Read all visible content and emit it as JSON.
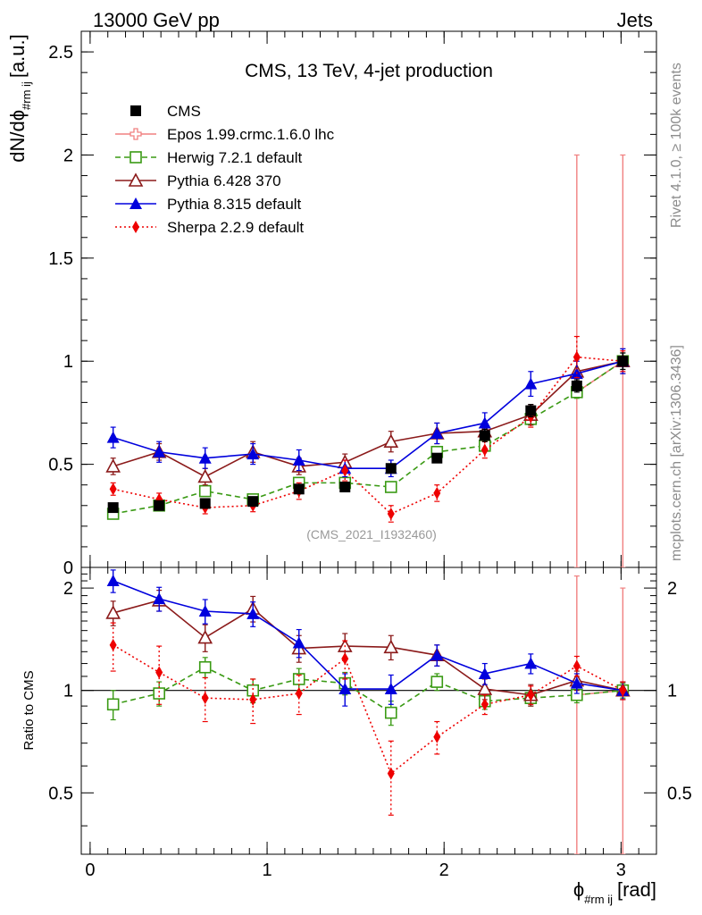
{
  "header": {
    "left": "13000 GeV pp",
    "right": "Jets"
  },
  "side_text": {
    "rivet": "Rivet 4.1.0, ≥ 100k events",
    "mcplots": "mcplots.cern.ch [arXiv:1306.3436]"
  },
  "chart_data": {
    "type": "line",
    "title": "CMS, 13 TeV, 4-jet production",
    "analysis_label": "(CMS_2021_I1932460)",
    "xlabel": "ϕ_{#rm ij} [rad]",
    "xlabel_main": "ϕ",
    "xlabel_sub": "#rm ij",
    "xlabel_unit": "[rad]",
    "ylabel_main": "dN/dϕ",
    "ylabel_sub": "#rm ij",
    "ylabel_unit": "[a.u.]",
    "ratio_ylabel": "Ratio to CMS",
    "xlim": [
      -0.05,
      3.2
    ],
    "ylim": [
      0,
      2.6
    ],
    "ratio_ylim": [
      0.33,
      2.3
    ],
    "x_ticks": [
      "0",
      "1",
      "2",
      "3"
    ],
    "y_ticks": [
      "0",
      "0.5",
      "1",
      "1.5",
      "2",
      "2.5"
    ],
    "ratio_ticks": [
      "0.5",
      "1",
      "2"
    ],
    "x": [
      0.13,
      0.39,
      0.65,
      0.92,
      1.18,
      1.44,
      1.7,
      1.96,
      2.23,
      2.49,
      2.75,
      3.01
    ],
    "series": [
      {
        "name": "CMS",
        "color": "#000000",
        "marker": "filled-square",
        "line": "none",
        "values": [
          0.29,
          0.3,
          0.31,
          0.32,
          0.38,
          0.39,
          0.48,
          0.53,
          0.64,
          0.76,
          0.88,
          1.0
        ],
        "errors": [
          0.02,
          0.02,
          0.02,
          0.02,
          0.02,
          0.02,
          0.02,
          0.02,
          0.03,
          0.03,
          0.03,
          0.04
        ],
        "ratio": [
          1,
          1,
          1,
          1,
          1,
          1,
          1,
          1,
          1,
          1,
          1,
          1
        ]
      },
      {
        "name": "Epos 1.99.crmc.1.6.0 lhc",
        "color": "#f08080",
        "marker": "open-cross",
        "line": "solid",
        "values": [
          null,
          null,
          null,
          null,
          null,
          null,
          null,
          null,
          null,
          null,
          0.85,
          1.0
        ],
        "errors": [
          null,
          null,
          null,
          null,
          null,
          null,
          null,
          null,
          null,
          null,
          1.15,
          1.0
        ],
        "ratio": [
          null,
          null,
          null,
          null,
          null,
          null,
          null,
          null,
          null,
          null,
          0.97,
          1.0
        ],
        "ratio_errors": [
          null,
          null,
          null,
          null,
          null,
          null,
          null,
          null,
          null,
          null,
          1.2,
          1.0
        ]
      },
      {
        "name": "Herwig 7.2.1 default",
        "color": "#3a9a14",
        "marker": "open-square",
        "line": "dashed",
        "values": [
          0.26,
          0.3,
          0.37,
          0.33,
          0.41,
          0.41,
          0.39,
          0.56,
          0.59,
          0.72,
          0.85,
          1.0
        ],
        "errors": [
          0.02,
          0.02,
          0.02,
          0.02,
          0.02,
          0.02,
          0.02,
          0.02,
          0.02,
          0.03,
          0.03,
          0.04
        ],
        "ratio": [
          0.91,
          0.98,
          1.17,
          1.0,
          1.08,
          1.05,
          0.86,
          1.06,
          0.93,
          0.95,
          0.97,
          1.0
        ],
        "ratio_errors": [
          0.09,
          0.08,
          0.08,
          0.08,
          0.08,
          0.08,
          0.07,
          0.06,
          0.05,
          0.05,
          0.05,
          0.05
        ]
      },
      {
        "name": "Pythia 6.428 370",
        "color": "#8b1a1a",
        "marker": "open-triangle",
        "line": "solid",
        "values": [
          0.49,
          0.56,
          0.44,
          0.56,
          0.49,
          0.51,
          0.61,
          0.65,
          0.66,
          0.74,
          0.95,
          1.0
        ],
        "errors": [
          0.04,
          0.04,
          0.04,
          0.05,
          0.04,
          0.04,
          0.05,
          0.05,
          0.04,
          0.05,
          0.06,
          0.06
        ],
        "ratio": [
          1.69,
          1.84,
          1.43,
          1.74,
          1.33,
          1.35,
          1.34,
          1.27,
          1.01,
          0.97,
          1.07,
          1.0
        ],
        "ratio_errors": [
          0.14,
          0.13,
          0.13,
          0.15,
          0.12,
          0.12,
          0.11,
          0.09,
          0.07,
          0.07,
          0.07,
          0.06
        ]
      },
      {
        "name": "Pythia 8.315 default",
        "color": "#0000dd",
        "marker": "filled-triangle",
        "line": "solid",
        "values": [
          0.63,
          0.56,
          0.53,
          0.55,
          0.52,
          0.48,
          0.48,
          0.65,
          0.7,
          0.89,
          0.94,
          1.0
        ],
        "errors": [
          0.05,
          0.05,
          0.05,
          0.05,
          0.05,
          0.04,
          0.04,
          0.05,
          0.05,
          0.06,
          0.06,
          0.06
        ],
        "ratio": [
          2.1,
          1.86,
          1.71,
          1.68,
          1.38,
          1.01,
          1.01,
          1.27,
          1.12,
          1.2,
          1.05,
          1.0
        ],
        "ratio_errors": [
          0.16,
          0.15,
          0.14,
          0.14,
          0.13,
          0.11,
          0.1,
          0.09,
          0.08,
          0.08,
          0.07,
          0.06
        ]
      },
      {
        "name": "Sherpa 2.2.9 default",
        "color": "#ee0000",
        "marker": "filled-diamond",
        "line": "dotted",
        "values": [
          0.38,
          0.33,
          0.29,
          0.3,
          0.37,
          0.47,
          0.26,
          0.36,
          0.57,
          0.73,
          1.02,
          1.0
        ],
        "errors": [
          0.03,
          0.03,
          0.03,
          0.03,
          0.04,
          0.05,
          0.04,
          0.04,
          0.04,
          0.05,
          0.1,
          0.05
        ],
        "ratio": [
          1.36,
          1.13,
          0.95,
          0.94,
          0.98,
          1.24,
          0.57,
          0.73,
          0.91,
          0.97,
          1.18,
          1.0
        ],
        "ratio_errors": [
          0.22,
          0.22,
          0.14,
          0.14,
          0.13,
          0.16,
          0.14,
          0.08,
          0.06,
          0.06,
          0.08,
          0.06
        ]
      }
    ]
  }
}
